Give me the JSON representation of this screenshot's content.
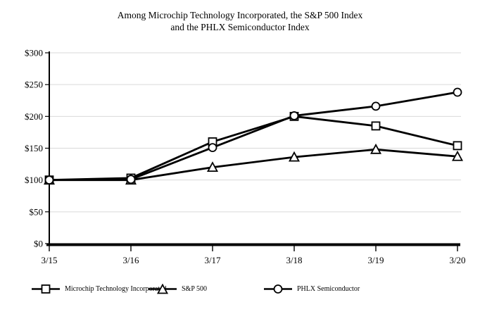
{
  "title": {
    "line1": "Among Microchip Technology Incorporated, the S&P 500 Index",
    "line2": "and the PHLX Semiconductor Index"
  },
  "chart_data": {
    "type": "line",
    "categories": [
      "3/15",
      "3/16",
      "3/17",
      "3/18",
      "3/19",
      "3/20"
    ],
    "series": [
      {
        "name": "Microchip Technology Incorporated",
        "marker": "square",
        "values": [
          100,
          103,
          160,
          200,
          185,
          154
        ]
      },
      {
        "name": "S&P 500",
        "marker": "triangle",
        "values": [
          100,
          100,
          120,
          136,
          148,
          137
        ]
      },
      {
        "name": "PHLX Semiconductor",
        "marker": "circle",
        "values": [
          100,
          101,
          151,
          201,
          216,
          238
        ]
      }
    ],
    "title": "Among Microchip Technology Incorporated, the S&P 500 Index and the PHLX Semiconductor Index",
    "xlabel": "",
    "ylabel": "",
    "ylim": [
      0,
      300
    ],
    "ytick_step": 50,
    "y_tick_labels": [
      "$0",
      "$50",
      "$100",
      "$150",
      "$200",
      "$250",
      "$300"
    ],
    "grid": true,
    "legend_position": "bottom",
    "colors": {
      "line": "#000000",
      "marker_fill": "#ffffff",
      "grid": "#d9d9d9",
      "background": "#ffffff",
      "text": "#000000"
    }
  }
}
